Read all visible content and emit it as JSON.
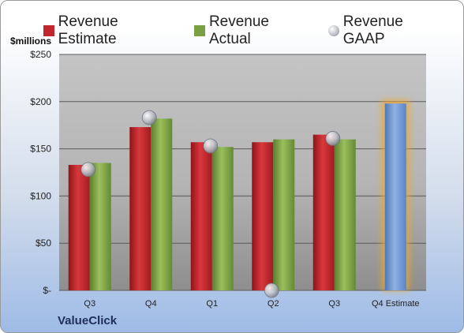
{
  "legend": {
    "estimate": "Revenue Estimate",
    "actual": "Revenue Actual",
    "gaap": "Revenue GAAP"
  },
  "unit_label": "$millions",
  "company": "ValueClick",
  "colors": {
    "estimate": "#c0262b",
    "actual": "#7aa043",
    "gaap": "#b9bdc4",
    "forecast": "#6f9ad4",
    "forecast_glow": "#f5a623",
    "plot_bg": "#bdbdbd"
  },
  "chart_data": {
    "type": "bar",
    "categories": [
      "Q3",
      "Q4",
      "Q1",
      "Q2",
      "Q3",
      "Q4 Estimate"
    ],
    "ylabel": "$millions",
    "ylim": [
      0,
      250
    ],
    "yticks": [
      0,
      50,
      100,
      150,
      200,
      250
    ],
    "ytick_labels": [
      "$-",
      "$50",
      "$100",
      "$150",
      "$200",
      "$250"
    ],
    "grid": true,
    "legend_position": "top",
    "series": [
      {
        "name": "Revenue Estimate",
        "type": "bar",
        "values": [
          133,
          173,
          157,
          157,
          165,
          null
        ]
      },
      {
        "name": "Revenue Actual",
        "type": "bar",
        "values": [
          135,
          182,
          152,
          160,
          160,
          198
        ]
      },
      {
        "name": "Revenue GAAP",
        "type": "scatter",
        "values": [
          128,
          183,
          153,
          0,
          161,
          null
        ]
      }
    ]
  }
}
